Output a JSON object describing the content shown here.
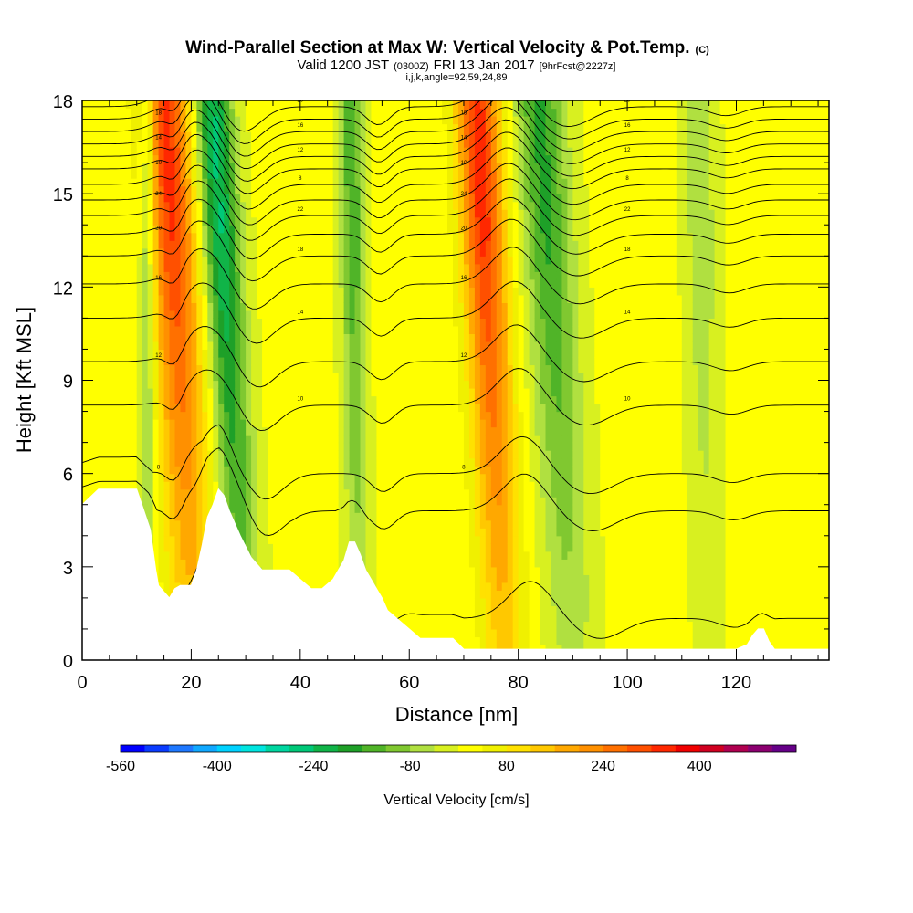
{
  "header": {
    "title_main": "Wind-Parallel Section at Max W: Vertical Velocity & Pot.Temp.",
    "title_mark": "(C)",
    "valid_prefix": "Valid 1200 JST",
    "valid_utc": "(0300Z)",
    "valid_date": "FRI 13 Jan 2017",
    "forecast": "[9hrFcst@2227z]",
    "indices": "i,j,k,angle=92,59,24,89"
  },
  "chart_data": {
    "type": "heatmap",
    "xlabel": "Distance [nm]",
    "ylabel": "Height [Kft MSL]",
    "xlim": [
      0,
      137
    ],
    "ylim": [
      0,
      18
    ],
    "x_ticks": [
      "0",
      "20",
      "40",
      "60",
      "80",
      "100",
      "120"
    ],
    "x_tick_values": [
      0,
      20,
      40,
      60,
      80,
      100,
      120
    ],
    "y_ticks": [
      "0",
      "3",
      "6",
      "9",
      "12",
      "15",
      "18"
    ],
    "y_tick_values": [
      0,
      3,
      6,
      9,
      12,
      15,
      18
    ],
    "fill_field": "Vertical Velocity",
    "contour_field": "Potential Temperature",
    "updraft_axes_nm": [
      18,
      27,
      50,
      75,
      87,
      114
    ],
    "wave_components": [
      {
        "x_center": 18,
        "amplitude": 320,
        "width": 4.5,
        "tilt": 0.3
      },
      {
        "x_center": 27,
        "amplitude": -260,
        "width": 3.5,
        "tilt": 0.35
      },
      {
        "x_center": 50,
        "amplitude": -160,
        "width": 2.2,
        "tilt": 0.08
      },
      {
        "x_center": 75,
        "amplitude": 330,
        "width": 4.0,
        "tilt": 0.28
      },
      {
        "x_center": 87,
        "amplitude": -180,
        "width": 4.5,
        "tilt": 0.35
      },
      {
        "x_center": 114,
        "amplitude": -80,
        "width": 3.0,
        "tilt": 0.1
      },
      {
        "x_center": 12,
        "amplitude": -150,
        "width": 1.5,
        "tilt": 0.0
      }
    ],
    "terrain": {
      "x": [
        0,
        3,
        10,
        12.5,
        13.5,
        14,
        16,
        17,
        18,
        20,
        21,
        22,
        23,
        24,
        25,
        26,
        27,
        29,
        31,
        33,
        35,
        37,
        38,
        40,
        42,
        44,
        46,
        47,
        48,
        49,
        50,
        51,
        52,
        53,
        54,
        55,
        56,
        58,
        60,
        62,
        64,
        66,
        68,
        70,
        72,
        80,
        90,
        100,
        110,
        120,
        122,
        123,
        124,
        125,
        126,
        127,
        130,
        137
      ],
      "y": [
        5.0,
        5.5,
        5.5,
        4.2,
        2.9,
        2.4,
        2.0,
        2.3,
        2.4,
        2.4,
        2.9,
        3.7,
        4.6,
        5.0,
        5.5,
        5.3,
        4.8,
        4.0,
        3.3,
        2.9,
        2.9,
        2.9,
        2.9,
        2.6,
        2.3,
        2.3,
        2.6,
        2.9,
        3.2,
        3.8,
        3.8,
        3.4,
        2.9,
        2.6,
        2.3,
        2.0,
        1.6,
        1.3,
        1.0,
        0.7,
        0.7,
        0.7,
        0.7,
        0.35,
        0.35,
        0.35,
        0.35,
        0.35,
        0.35,
        0.35,
        0.5,
        0.8,
        1.0,
        1.0,
        0.6,
        0.35,
        0.35,
        0.35
      ]
    },
    "theta_contours": {
      "base_levels_kft": [
        0.8,
        4.8,
        6.0,
        8.2,
        9.6,
        11.0,
        12.1,
        13.0,
        13.7,
        14.3,
        14.8,
        15.3,
        15.8,
        16.2,
        16.6,
        17.0,
        17.4,
        17.8
      ],
      "label_values": [
        "8",
        "10",
        "12",
        "14",
        "16",
        "18",
        "20",
        "22",
        "24"
      ]
    },
    "colorbar": {
      "label": "Vertical Velocity [cm/s]",
      "tick_labels": [
        "-560",
        "-400",
        "-240",
        "-80",
        "80",
        "240",
        "400"
      ],
      "tick_values": [
        -560,
        -400,
        -240,
        -80,
        80,
        240,
        400
      ],
      "range": [
        -560,
        560
      ],
      "bin_width": 40,
      "colors": [
        "#0000ff",
        "#0a3cff",
        "#1e78ff",
        "#10a8ff",
        "#00d2ff",
        "#00e5e0",
        "#00d6a0",
        "#00c878",
        "#10b448",
        "#1ea028",
        "#50b428",
        "#80c830",
        "#b0e040",
        "#d8f020",
        "#ffff00",
        "#f0f000",
        "#ffe100",
        "#ffc800",
        "#ffa800",
        "#ff9000",
        "#ff7000",
        "#ff5000",
        "#ff2800",
        "#f00000",
        "#d00020",
        "#b00050",
        "#8c0070",
        "#660088"
      ]
    }
  }
}
